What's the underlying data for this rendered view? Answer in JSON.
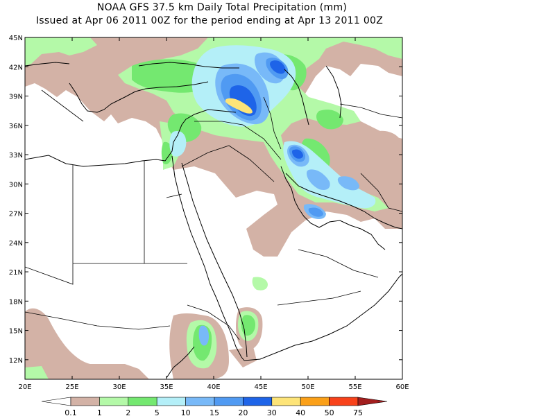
{
  "header": {
    "title": "NOAA GFS 37.5 km Daily Total Precipitation (mm)",
    "subtitle": "Issued at Apr 06 2011 00Z for the period ending at Apr 13 2011 00Z"
  },
  "map": {
    "lat_labels": [
      "45N",
      "42N",
      "39N",
      "36N",
      "33N",
      "30N",
      "27N",
      "24N",
      "21N",
      "18N",
      "15N",
      "12N"
    ],
    "lon_labels": [
      "20E",
      "25E",
      "30E",
      "35E",
      "40E",
      "45E",
      "50E",
      "55E",
      "60E"
    ],
    "lat_range": [
      10,
      45
    ],
    "lon_range": [
      20,
      60
    ]
  },
  "colorbar": {
    "levels": [
      "0.1",
      "1",
      "2",
      "5",
      "10",
      "15",
      "20",
      "30",
      "40",
      "50",
      "75"
    ],
    "colors": [
      "#ffffff",
      "#d3b2a6",
      "#b4f9a8",
      "#74e870",
      "#b4eff8",
      "#78b9f8",
      "#509af2",
      "#1e64e8",
      "#fde478",
      "#fba018",
      "#f8421a",
      "#a21e1e"
    ]
  },
  "precip_colors": {
    "tan": "#d3b2a6",
    "light_green": "#b4f9a8",
    "green": "#74e870",
    "light_cyan": "#b4eff8",
    "light_blue": "#78b9f8",
    "blue": "#509af2",
    "dark_blue": "#1e64e8",
    "yellow": "#fde478"
  }
}
